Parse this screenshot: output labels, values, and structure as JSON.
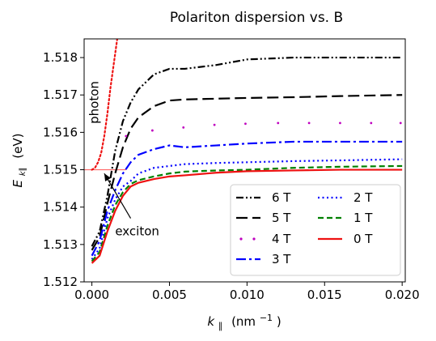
{
  "chart_data": {
    "type": "line",
    "title": "Polariton dispersion vs. B",
    "xlabel_main": "k",
    "xlabel_sub": "∥",
    "xlabel_unit": "(nm",
    "xlabel_exp": "−1",
    "xlabel_close": ")",
    "ylabel_main": "E",
    "ylabel_sub": "k∥",
    "ylabel_unit": "(eV)",
    "xlim": [
      -0.0005,
      0.0202
    ],
    "ylim": [
      1.512,
      1.5185
    ],
    "xticks": [
      {
        "v": 0.0,
        "label": "0.000"
      },
      {
        "v": 0.005,
        "label": "0.005"
      },
      {
        "v": 0.01,
        "label": "0.010"
      },
      {
        "v": 0.015,
        "label": "0.015"
      },
      {
        "v": 0.02,
        "label": "0.020"
      }
    ],
    "yticks": [
      {
        "v": 1.512,
        "label": "1.512"
      },
      {
        "v": 1.513,
        "label": "1.513"
      },
      {
        "v": 1.514,
        "label": "1.514"
      },
      {
        "v": 1.515,
        "label": "1.515"
      },
      {
        "v": 1.516,
        "label": "1.516"
      },
      {
        "v": 1.517,
        "label": "1.517"
      },
      {
        "v": 1.518,
        "label": "1.518"
      }
    ],
    "series": [
      {
        "name": "6 T",
        "color": "#000000",
        "dash": "dashdotdot",
        "x": [
          0,
          0.0005,
          0.001,
          0.0015,
          0.002,
          0.0025,
          0.003,
          0.004,
          0.005,
          0.006,
          0.008,
          0.01,
          0.013,
          0.016,
          0.02
        ],
        "y": [
          1.51295,
          1.51335,
          1.5143,
          1.5155,
          1.5163,
          1.5168,
          1.51715,
          1.51755,
          1.5177,
          1.5177,
          1.5178,
          1.51795,
          1.518,
          1.518,
          1.518
        ]
      },
      {
        "name": "5 T",
        "color": "#000000",
        "dash": "longdash",
        "x": [
          0,
          0.0005,
          0.001,
          0.0015,
          0.002,
          0.0025,
          0.003,
          0.004,
          0.005,
          0.006,
          0.008,
          0.01,
          0.013,
          0.016,
          0.02
        ],
        "y": [
          1.51285,
          1.5132,
          1.5141,
          1.5149,
          1.5156,
          1.5161,
          1.5164,
          1.5167,
          1.51685,
          1.51688,
          1.5169,
          1.51692,
          1.51694,
          1.51697,
          1.517
        ]
      },
      {
        "name": "4 T",
        "color": "#bf00bf",
        "dash": "dotted-sparse",
        "x": [
          0.0022,
          0.0039,
          0.0059,
          0.0079,
          0.0099,
          0.012,
          0.014,
          0.016,
          0.018,
          0.0199
        ],
        "y": [
          1.5159,
          1.51605,
          1.51613,
          1.5162,
          1.51623,
          1.51625,
          1.51625,
          1.51625,
          1.51625,
          1.51625
        ]
      },
      {
        "name": "3 T",
        "color": "#0000ff",
        "dash": "dashdot",
        "x": [
          0,
          0.0005,
          0.001,
          0.0015,
          0.002,
          0.0025,
          0.003,
          0.004,
          0.005,
          0.006,
          0.008,
          0.01,
          0.013,
          0.016,
          0.02
        ],
        "y": [
          1.5127,
          1.5131,
          1.5139,
          1.51445,
          1.5149,
          1.5152,
          1.5154,
          1.51555,
          1.51565,
          1.5156,
          1.51565,
          1.5157,
          1.51575,
          1.51575,
          1.51575
        ]
      },
      {
        "name": "2 T",
        "color": "#0000ff",
        "dash": "dotted",
        "x": [
          0,
          0.0005,
          0.001,
          0.0015,
          0.002,
          0.0025,
          0.003,
          0.004,
          0.005,
          0.006,
          0.008,
          0.01,
          0.013,
          0.016,
          0.02
        ],
        "y": [
          1.5126,
          1.5129,
          1.5137,
          1.5142,
          1.51455,
          1.5147,
          1.5149,
          1.51505,
          1.5151,
          1.51515,
          1.51518,
          1.5152,
          1.51523,
          1.51525,
          1.51528
        ]
      },
      {
        "name": "1 T",
        "color": "#008000",
        "dash": "dashed",
        "x": [
          0,
          0.0005,
          0.001,
          0.0015,
          0.002,
          0.0025,
          0.003,
          0.004,
          0.005,
          0.006,
          0.008,
          0.01,
          0.013,
          0.016,
          0.02
        ],
        "y": [
          1.51255,
          1.5128,
          1.5135,
          1.51405,
          1.5144,
          1.51462,
          1.51472,
          1.51482,
          1.5149,
          1.51495,
          1.51498,
          1.515,
          1.51505,
          1.51508,
          1.5151
        ]
      },
      {
        "name": "0 T",
        "color": "#ee1111",
        "dash": "solid",
        "x": [
          0,
          0.0005,
          0.001,
          0.0015,
          0.002,
          0.0025,
          0.003,
          0.004,
          0.005,
          0.006,
          0.008,
          0.01,
          0.013,
          0.016,
          0.02
        ],
        "y": [
          1.5125,
          1.5127,
          1.51335,
          1.5139,
          1.5143,
          1.51455,
          1.51465,
          1.51475,
          1.51482,
          1.51485,
          1.51492,
          1.51496,
          1.51498,
          1.515,
          1.515
        ]
      }
    ],
    "photon": {
      "color": "#ee1111",
      "x": [
        0,
        0.0002,
        0.0004,
        0.0006,
        0.0008,
        0.001,
        0.0012,
        0.0014,
        0.0016,
        0.0018,
        0.0019
      ],
      "y": [
        1.515,
        1.51505,
        1.5152,
        1.51545,
        1.5159,
        1.5165,
        1.5172,
        1.5178,
        1.5184,
        1.519,
        1.5193
      ]
    },
    "exciton_line": {
      "color": "#ff6666",
      "x": [
        0,
        0.0022
      ],
      "y": 1.515
    },
    "annotations": [
      {
        "text": "photon",
        "x": 0.0004,
        "y": 1.5168,
        "rotate": -90
      },
      {
        "text": "exciton",
        "x": 0.0015,
        "y": 1.51325
      }
    ],
    "exciton_arrow": {
      "from": [
        0.0025,
        1.5137
      ],
      "to": [
        0.0008,
        1.5149
      ]
    },
    "legend": {
      "position": "lower-right",
      "columns": 2
    }
  }
}
